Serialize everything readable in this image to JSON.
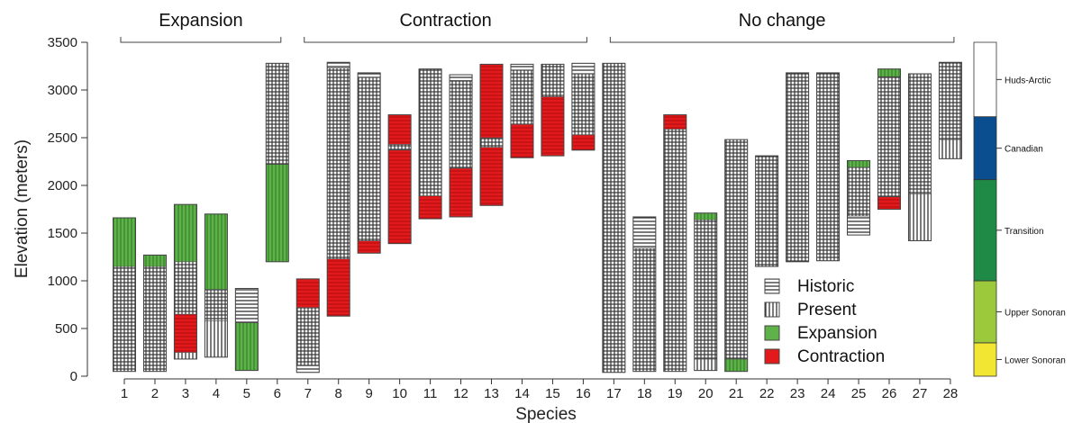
{
  "chart_data": {
    "type": "bar",
    "subtype": "floating-range",
    "xlabel": "Species",
    "ylabel": "Elevation (meters)",
    "ylim": [
      0,
      3500
    ],
    "yticks": [
      0,
      500,
      1000,
      1500,
      2000,
      2500,
      3000,
      3500
    ],
    "categories": [
      "1",
      "2",
      "3",
      "4",
      "5",
      "6",
      "7",
      "8",
      "9",
      "10",
      "11",
      "12",
      "13",
      "14",
      "15",
      "16",
      "17",
      "18",
      "19",
      "20",
      "21",
      "22",
      "23",
      "24",
      "25",
      "26",
      "27",
      "28"
    ],
    "groups": [
      {
        "label": "Expansion",
        "from": "1",
        "to": "6"
      },
      {
        "label": "Contraction",
        "from": "7",
        "to": "16"
      },
      {
        "label": "No change",
        "from": "17",
        "to": "28"
      }
    ],
    "legend": {
      "position": "inside-bottom-center",
      "entries": [
        {
          "label": "Historic",
          "pattern": "horizontal-lines"
        },
        {
          "label": "Present",
          "pattern": "vertical-lines"
        },
        {
          "label": "Expansion",
          "color": "#5fb24a"
        },
        {
          "label": "Contraction",
          "color": "#e31a1c"
        }
      ]
    },
    "series": [
      {
        "species": "1",
        "segments": [
          {
            "type": "both",
            "from": 50,
            "to": 1150
          },
          {
            "type": "expansion",
            "from": 1150,
            "to": 1660
          }
        ]
      },
      {
        "species": "2",
        "segments": [
          {
            "type": "both",
            "from": 50,
            "to": 1150
          },
          {
            "type": "expansion",
            "from": 1150,
            "to": 1270
          }
        ]
      },
      {
        "species": "3",
        "segments": [
          {
            "type": "present",
            "from": 180,
            "to": 250
          },
          {
            "type": "contraction",
            "from": 250,
            "to": 650
          },
          {
            "type": "both",
            "from": 650,
            "to": 1200
          },
          {
            "type": "expansion",
            "from": 1200,
            "to": 1800
          }
        ]
      },
      {
        "species": "4",
        "segments": [
          {
            "type": "present",
            "from": 200,
            "to": 580
          },
          {
            "type": "both",
            "from": 580,
            "to": 910
          },
          {
            "type": "expansion",
            "from": 910,
            "to": 1700
          }
        ]
      },
      {
        "species": "5",
        "segments": [
          {
            "type": "expansion",
            "from": 60,
            "to": 560
          },
          {
            "type": "historic",
            "from": 560,
            "to": 920
          }
        ]
      },
      {
        "species": "6",
        "segments": [
          {
            "type": "expansion",
            "from": 1200,
            "to": 2220
          },
          {
            "type": "both",
            "from": 2220,
            "to": 3280
          }
        ]
      },
      {
        "species": "7",
        "segments": [
          {
            "type": "historic",
            "from": 40,
            "to": 110
          },
          {
            "type": "both",
            "from": 110,
            "to": 720
          },
          {
            "type": "contraction",
            "from": 720,
            "to": 1020
          }
        ]
      },
      {
        "species": "8",
        "segments": [
          {
            "type": "contraction",
            "from": 630,
            "to": 1230
          },
          {
            "type": "both",
            "from": 1230,
            "to": 3230
          },
          {
            "type": "historic",
            "from": 3230,
            "to": 3290
          }
        ]
      },
      {
        "species": "9",
        "segments": [
          {
            "type": "contraction",
            "from": 1290,
            "to": 1420
          },
          {
            "type": "both",
            "from": 1420,
            "to": 3130
          },
          {
            "type": "historic",
            "from": 3130,
            "to": 3180
          }
        ]
      },
      {
        "species": "10",
        "segments": [
          {
            "type": "contraction",
            "from": 1390,
            "to": 2370
          },
          {
            "type": "both",
            "from": 2370,
            "to": 2430
          },
          {
            "type": "contraction",
            "from": 2430,
            "to": 2740
          }
        ]
      },
      {
        "species": "11",
        "segments": [
          {
            "type": "contraction",
            "from": 1650,
            "to": 1890
          },
          {
            "type": "both",
            "from": 1890,
            "to": 3220
          }
        ]
      },
      {
        "species": "12",
        "segments": [
          {
            "type": "contraction",
            "from": 1670,
            "to": 2180
          },
          {
            "type": "both",
            "from": 2180,
            "to": 3100
          },
          {
            "type": "historic",
            "from": 3100,
            "to": 3160
          }
        ]
      },
      {
        "species": "13",
        "segments": [
          {
            "type": "contraction",
            "from": 1790,
            "to": 2400
          },
          {
            "type": "both",
            "from": 2400,
            "to": 2500
          },
          {
            "type": "contraction",
            "from": 2500,
            "to": 3270
          }
        ]
      },
      {
        "species": "14",
        "segments": [
          {
            "type": "contraction",
            "from": 2290,
            "to": 2640
          },
          {
            "type": "both",
            "from": 2640,
            "to": 3210
          },
          {
            "type": "historic",
            "from": 3210,
            "to": 3270
          }
        ]
      },
      {
        "species": "15",
        "segments": [
          {
            "type": "contraction",
            "from": 2310,
            "to": 2930
          },
          {
            "type": "both",
            "from": 2930,
            "to": 3270
          }
        ]
      },
      {
        "species": "16",
        "segments": [
          {
            "type": "contraction",
            "from": 2370,
            "to": 2530
          },
          {
            "type": "both",
            "from": 2530,
            "to": 3170
          },
          {
            "type": "historic",
            "from": 3170,
            "to": 3280
          }
        ]
      },
      {
        "species": "17",
        "segments": [
          {
            "type": "both",
            "from": 40,
            "to": 3280
          }
        ]
      },
      {
        "species": "18",
        "segments": [
          {
            "type": "both",
            "from": 50,
            "to": 1340
          },
          {
            "type": "historic",
            "from": 1340,
            "to": 1670
          }
        ]
      },
      {
        "species": "19",
        "segments": [
          {
            "type": "both",
            "from": 50,
            "to": 2590
          },
          {
            "type": "contraction",
            "from": 2590,
            "to": 2740
          }
        ]
      },
      {
        "species": "20",
        "segments": [
          {
            "type": "present",
            "from": 60,
            "to": 180
          },
          {
            "type": "both",
            "from": 180,
            "to": 1640
          },
          {
            "type": "expansion",
            "from": 1640,
            "to": 1710
          }
        ]
      },
      {
        "species": "21",
        "segments": [
          {
            "type": "expansion",
            "from": 50,
            "to": 180
          },
          {
            "type": "both",
            "from": 180,
            "to": 2480
          }
        ]
      },
      {
        "species": "22",
        "segments": [
          {
            "type": "both",
            "from": 1150,
            "to": 2310
          }
        ]
      },
      {
        "species": "23",
        "segments": [
          {
            "type": "both",
            "from": 1200,
            "to": 3180
          }
        ]
      },
      {
        "species": "24",
        "segments": [
          {
            "type": "both",
            "from": 1210,
            "to": 3180
          }
        ]
      },
      {
        "species": "25",
        "segments": [
          {
            "type": "historic",
            "from": 1480,
            "to": 1680
          },
          {
            "type": "both",
            "from": 1680,
            "to": 2190
          },
          {
            "type": "expansion",
            "from": 2190,
            "to": 2260
          }
        ]
      },
      {
        "species": "26",
        "segments": [
          {
            "type": "contraction",
            "from": 1750,
            "to": 1880
          },
          {
            "type": "both",
            "from": 1880,
            "to": 3140
          },
          {
            "type": "expansion",
            "from": 3140,
            "to": 3220
          }
        ]
      },
      {
        "species": "27",
        "segments": [
          {
            "type": "present",
            "from": 1420,
            "to": 1910
          },
          {
            "type": "both",
            "from": 1910,
            "to": 3170
          }
        ]
      },
      {
        "species": "28",
        "segments": [
          {
            "type": "present",
            "from": 2280,
            "to": 2480
          },
          {
            "type": "both",
            "from": 2480,
            "to": 3290
          }
        ]
      }
    ],
    "zones": [
      {
        "label": "Lower Sonoran",
        "from": 0,
        "to": 350,
        "color": "#f2e632"
      },
      {
        "label": "Upper Sonoran",
        "from": 350,
        "to": 1000,
        "color": "#9cc83c"
      },
      {
        "label": "Transition",
        "from": 1000,
        "to": 2060,
        "color": "#1f8a45"
      },
      {
        "label": "Canadian",
        "from": 2060,
        "to": 2720,
        "color": "#0a4e8f"
      },
      {
        "label": "Huds-Arctic",
        "from": 2720,
        "to": 3500,
        "color": "#ffffff"
      }
    ]
  }
}
